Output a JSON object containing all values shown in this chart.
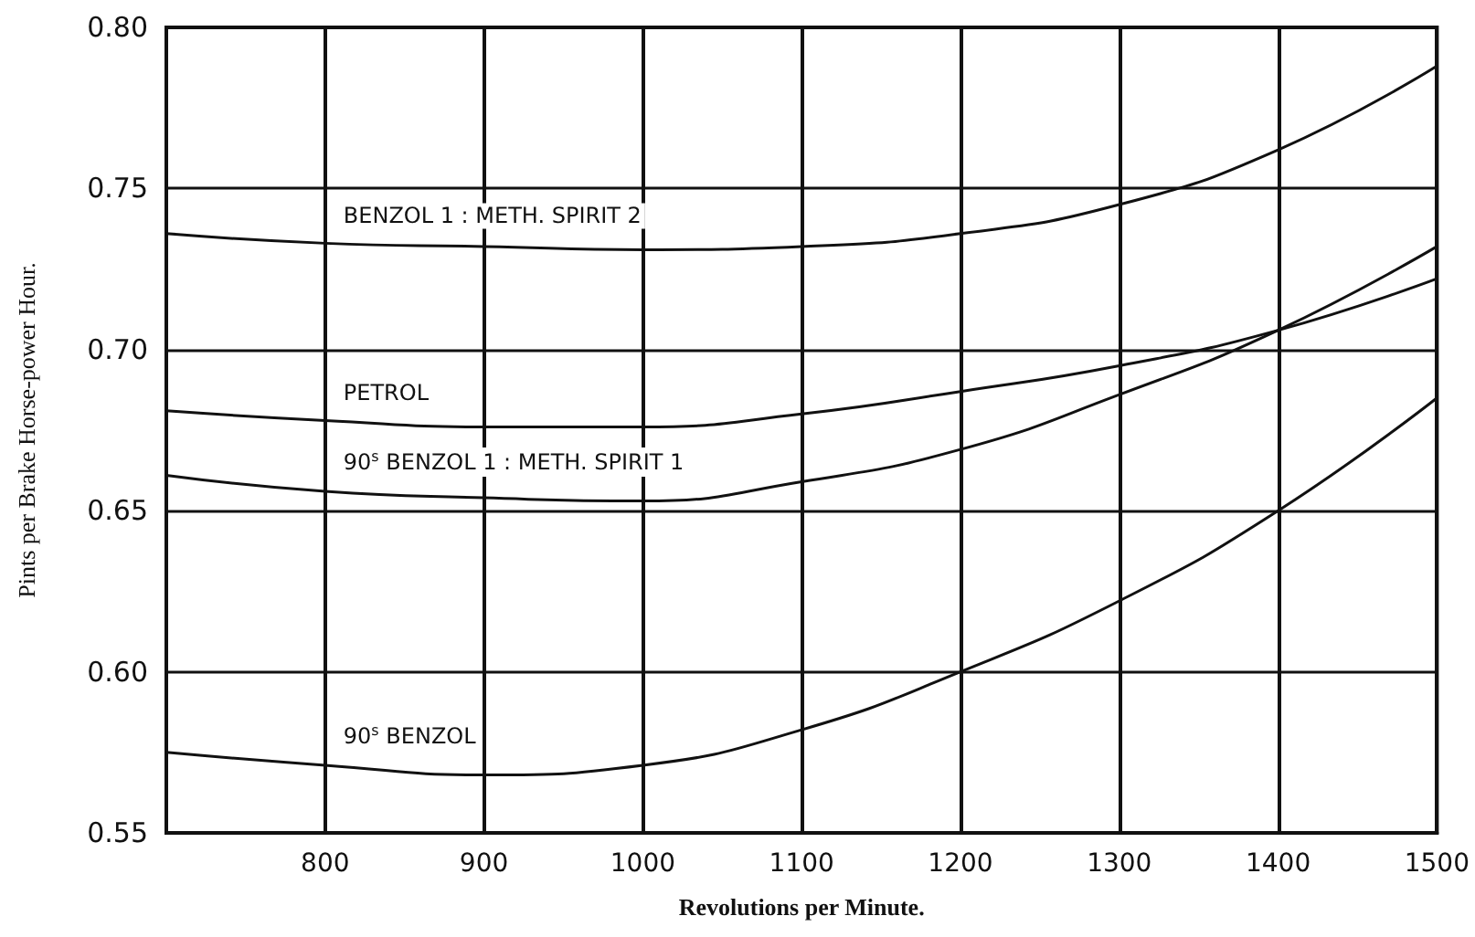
{
  "chart_data": {
    "type": "line",
    "xlabel": "Revolutions per Minute.",
    "ylabel": "Pints per Brake Horse-power Hour.",
    "x": [
      700,
      800,
      900,
      1000,
      1100,
      1200,
      1300,
      1400,
      1500
    ],
    "series": [
      {
        "name": "BENZOL 1 : METH. SPIRIT 2",
        "color": "#111111",
        "values": [
          0.736,
          0.733,
          0.732,
          0.731,
          0.732,
          0.736,
          0.745,
          0.762,
          0.788
        ]
      },
      {
        "name": "PETROL",
        "color": "#111111",
        "values": [
          0.681,
          0.678,
          0.676,
          0.676,
          0.68,
          0.687,
          0.695,
          0.706,
          0.722
        ]
      },
      {
        "name": "90$^{s}$ BENZOL 1 : METH. SPIRIT 1",
        "color": "#111111",
        "values": [
          0.661,
          0.656,
          0.654,
          0.653,
          0.659,
          0.669,
          0.686,
          0.706,
          0.732
        ]
      },
      {
        "name": "90$^{s}$ BENZOL",
        "color": "#111111",
        "values": [
          0.575,
          0.571,
          0.568,
          0.571,
          0.582,
          0.6,
          0.622,
          0.65,
          0.685
        ]
      }
    ],
    "xlim": [
      700,
      1500
    ],
    "xticks": [
      800,
      900,
      1000,
      1100,
      1200,
      1300,
      1400,
      1500
    ],
    "ylim": [
      0.55,
      0.8
    ],
    "yticks": [
      {
        "value": 0.55,
        "label": "0.55"
      },
      {
        "value": 0.6,
        "label": "0.60"
      },
      {
        "value": 0.65,
        "label": "0.65"
      },
      {
        "value": 0.7,
        "label": "0.70"
      },
      {
        "value": 0.75,
        "label": "0.75"
      },
      {
        "value": 0.8,
        "label": "0.80"
      }
    ],
    "grid": true,
    "marker": "none",
    "line_style": "solid",
    "legend": false
  }
}
